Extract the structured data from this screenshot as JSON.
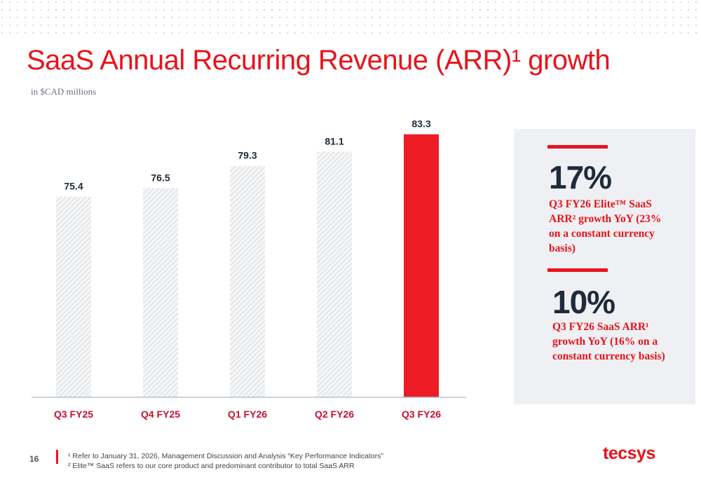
{
  "header": {
    "title": "SaaS Annual Recurring Revenue (ARR)¹ growth",
    "subtitle": "in $CAD millions"
  },
  "chart_data": {
    "type": "bar",
    "categories": [
      "Q3 FY25",
      "Q4 FY25",
      "Q1 FY26",
      "Q2 FY26",
      "Q3 FY26"
    ],
    "values": [
      75.4,
      76.5,
      79.3,
      81.1,
      83.3
    ],
    "color": "#c4c8cc",
    "colors": [
      "#c4c8cc",
      "#c4c8cc",
      "#c4c8cc",
      "#c4c8cc",
      "#ee1c25"
    ],
    "ylim": [
      50,
      85
    ]
  },
  "highlights": [
    {
      "value": "17%",
      "text": "Q3 FY26 Elite™ SaaS ARR² growth YoY (23% on a constant currency basis)"
    },
    {
      "value": "10%",
      "text": "Q3 FY26 SaaS ARR¹ growth YoY (16% on a constant currency basis)"
    }
  ],
  "footer": {
    "page": "16",
    "notes": [
      "¹ Refer to January 31, 2026, Management Discussion and Analysis “Key Performance Indicators”",
      "² Elite™ SaaS refers to our core product and predominant contributor to total SaaS ARR"
    ],
    "logo": "tecsys"
  }
}
